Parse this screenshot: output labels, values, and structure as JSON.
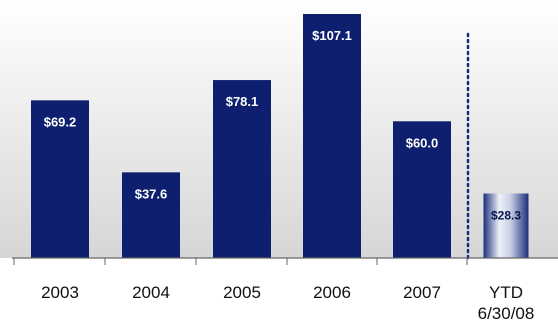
{
  "chart_data": {
    "type": "bar",
    "categories": [
      "2003",
      "2004",
      "2005",
      "2006",
      "2007",
      "YTD\n6/30/08"
    ],
    "category_lines": [
      [
        "2003"
      ],
      [
        "2004"
      ],
      [
        "2005"
      ],
      [
        "2006"
      ],
      [
        "2007"
      ],
      [
        "YTD",
        "6/30/08"
      ]
    ],
    "values": [
      69.2,
      37.6,
      78.1,
      107.1,
      60.0,
      28.3
    ],
    "data_labels": [
      "$69.2",
      "$37.6",
      "$78.1",
      "$107.1",
      "$60.0",
      "$28.3"
    ],
    "title": "",
    "xlabel": "",
    "ylabel": "",
    "ylim": [
      0,
      120
    ],
    "grid": false,
    "legend": "none",
    "divider": "dotted vertical line before YTD bar",
    "colors": {
      "bar": "#0d1f6e",
      "ytd_bar_light": "#e8ecf5",
      "ytd_bar_dark": "#1a2f7a",
      "divider": "#1a2a7a",
      "label_on_bar": "#ffffff",
      "ytd_label": "#0a1550",
      "axis": "#666666",
      "background_top": "#ffffff",
      "background_bottom": "#d9d9d9"
    }
  }
}
